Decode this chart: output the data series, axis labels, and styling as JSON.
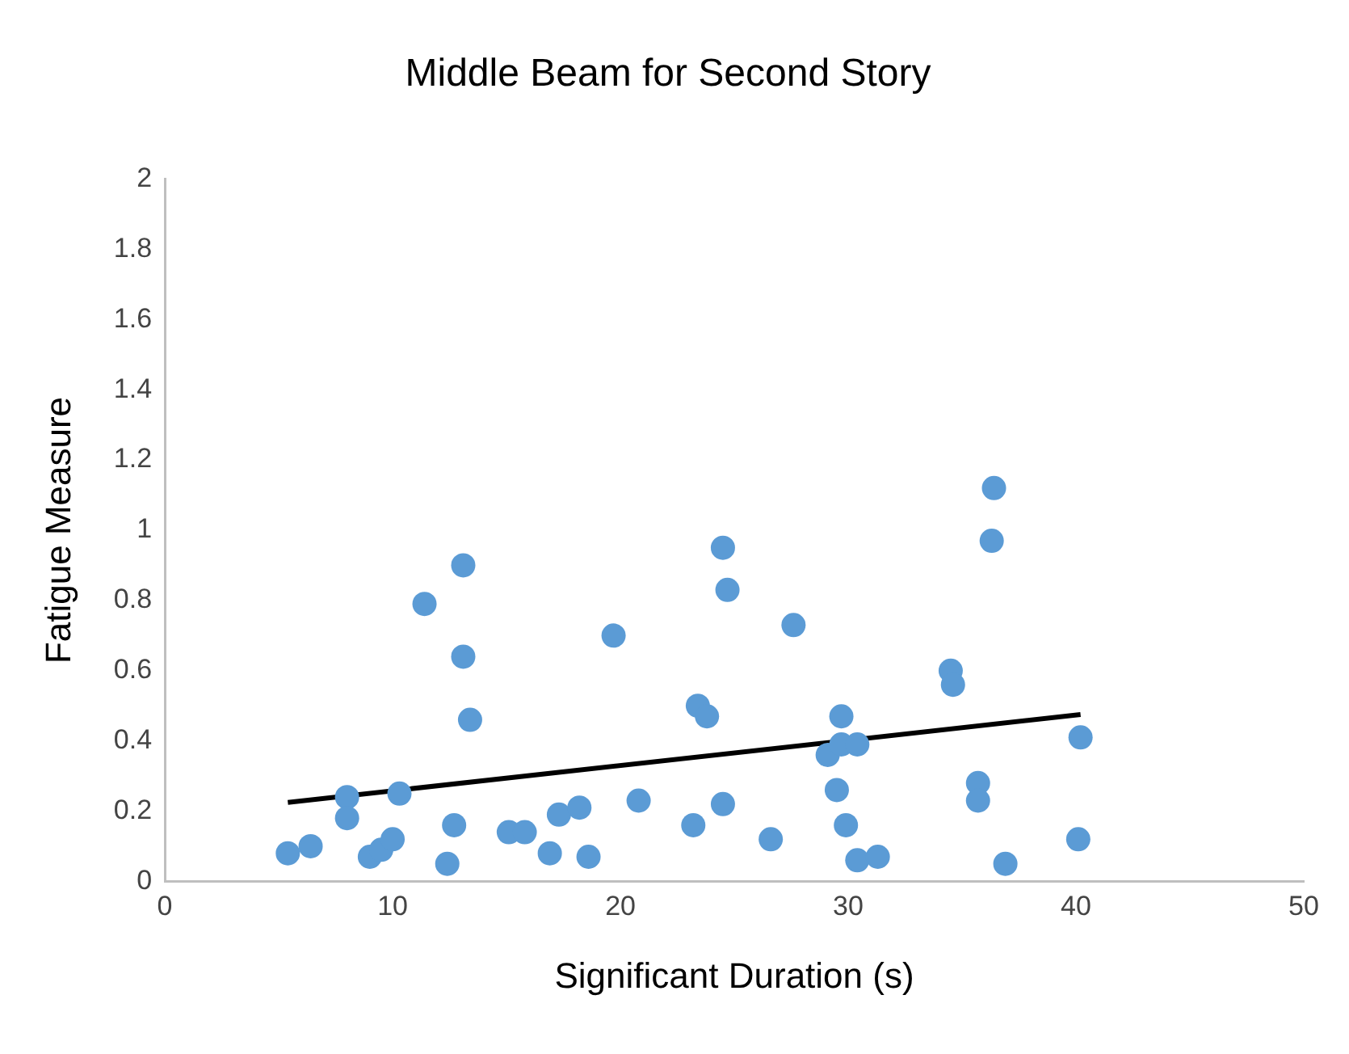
{
  "chart_data": {
    "type": "scatter",
    "title": "Middle Beam for Second Story",
    "xlabel": "Significant Duration (s)",
    "ylabel": "Fatigue Measure",
    "xlim": [
      0,
      50
    ],
    "xticks": [
      0,
      10,
      20,
      30,
      40,
      50
    ],
    "ylim": [
      0,
      2
    ],
    "yticks": [
      0,
      0.2,
      0.4,
      0.6,
      0.8,
      1,
      1.2,
      1.4,
      1.6,
      1.8,
      2
    ],
    "grid": false,
    "legend": false,
    "marker": "circle",
    "series": [
      {
        "type": "scatter",
        "color": "#5b9bd5",
        "x": [
          5.4,
          6.4,
          8.0,
          8.0,
          9.0,
          9.5,
          10.0,
          10.3,
          11.4,
          12.4,
          12.7,
          13.1,
          13.1,
          13.4,
          15.1,
          15.8,
          16.9,
          17.3,
          18.2,
          18.6,
          19.7,
          20.8,
          23.2,
          23.4,
          23.8,
          24.5,
          24.5,
          24.7,
          26.6,
          27.6,
          29.1,
          29.5,
          29.7,
          29.7,
          29.9,
          30.4,
          30.4,
          31.3,
          34.5,
          34.6,
          35.7,
          35.7,
          36.3,
          36.4,
          36.9,
          40.1,
          40.2
        ],
        "values": [
          0.08,
          0.1,
          0.24,
          0.18,
          0.07,
          0.09,
          0.12,
          0.25,
          0.79,
          0.05,
          0.16,
          0.9,
          0.64,
          0.46,
          0.14,
          0.14,
          0.08,
          0.19,
          0.21,
          0.07,
          0.7,
          0.23,
          0.16,
          0.5,
          0.47,
          0.22,
          0.95,
          0.83,
          0.12,
          0.73,
          0.36,
          0.26,
          0.47,
          0.39,
          0.16,
          0.39,
          0.06,
          0.07,
          0.6,
          0.56,
          0.28,
          0.23,
          0.97,
          1.12,
          0.05,
          0.12,
          0.41
        ]
      },
      {
        "type": "line",
        "color": "#000000",
        "marker": "none",
        "x": [
          5.4,
          40.2
        ],
        "values": [
          0.225,
          0.475
        ]
      }
    ]
  }
}
